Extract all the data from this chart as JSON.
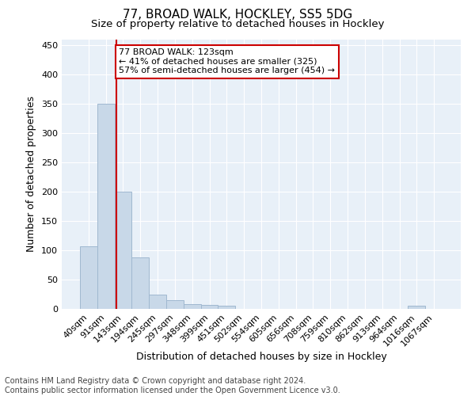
{
  "title1": "77, BROAD WALK, HOCKLEY, SS5 5DG",
  "title2": "Size of property relative to detached houses in Hockley",
  "xlabel": "Distribution of detached houses by size in Hockley",
  "ylabel": "Number of detached properties",
  "bar_labels": [
    "40sqm",
    "91sqm",
    "143sqm",
    "194sqm",
    "245sqm",
    "297sqm",
    "348sqm",
    "399sqm",
    "451sqm",
    "502sqm",
    "554sqm",
    "605sqm",
    "656sqm",
    "708sqm",
    "759sqm",
    "810sqm",
    "862sqm",
    "913sqm",
    "964sqm",
    "1016sqm",
    "1067sqm"
  ],
  "bar_values": [
    107,
    350,
    200,
    88,
    24,
    15,
    8,
    7,
    5,
    0,
    0,
    0,
    0,
    0,
    0,
    0,
    0,
    0,
    0,
    5,
    0
  ],
  "bar_color": "#c8d8e8",
  "bar_edgecolor": "#a0b8d0",
  "vline_color": "#cc0000",
  "annotation_text": "77 BROAD WALK: 123sqm\n← 41% of detached houses are smaller (325)\n57% of semi-detached houses are larger (454) →",
  "annotation_box_color": "white",
  "annotation_box_edgecolor": "#cc0000",
  "ylim": [
    0,
    460
  ],
  "yticks": [
    0,
    50,
    100,
    150,
    200,
    250,
    300,
    350,
    400,
    450
  ],
  "background_color": "#e8f0f8",
  "footer": "Contains HM Land Registry data © Crown copyright and database right 2024.\nContains public sector information licensed under the Open Government Licence v3.0.",
  "title_fontsize": 11,
  "subtitle_fontsize": 9.5,
  "footer_fontsize": 7,
  "ylabel_fontsize": 9,
  "xlabel_fontsize": 9,
  "tick_fontsize": 8,
  "annot_fontsize": 8
}
